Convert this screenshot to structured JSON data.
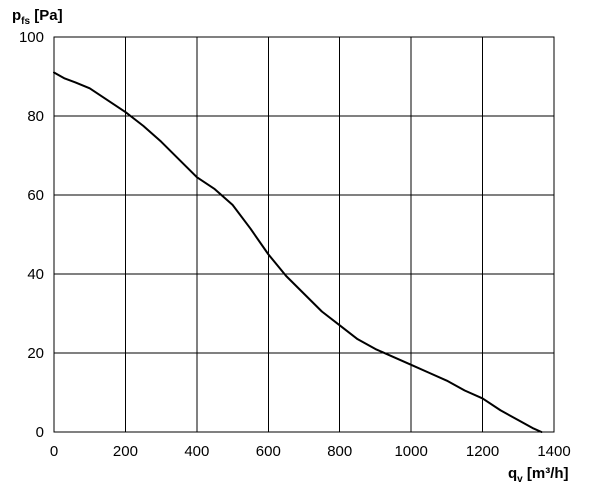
{
  "chart_data": {
    "type": "line",
    "ylabel": {
      "main": "p",
      "sub": "fs",
      "unit": " [Pa]"
    },
    "xlabel": {
      "main": "q",
      "sub": "v",
      "unit": " [m³/h]"
    },
    "xlim": [
      0,
      1400
    ],
    "ylim": [
      0,
      100
    ],
    "grid": true,
    "x_ticks": [
      "0",
      "200",
      "400",
      "600",
      "800",
      "1000",
      "1200",
      "1400"
    ],
    "x_tick_values": [
      0,
      200,
      400,
      600,
      800,
      1000,
      1200,
      1400
    ],
    "y_ticks": [
      "0",
      "20",
      "40",
      "60",
      "80",
      "100"
    ],
    "y_tick_values": [
      0,
      20,
      40,
      60,
      80,
      100
    ],
    "series": [
      {
        "color": "#000000",
        "x": [
          0,
          30,
          60,
          100,
          150,
          200,
          250,
          300,
          350,
          400,
          450,
          500,
          550,
          600,
          650,
          700,
          750,
          800,
          850,
          900,
          950,
          1000,
          1050,
          1100,
          1150,
          1200,
          1250,
          1300,
          1340,
          1365
        ],
        "y": [
          91,
          89.5,
          88.5,
          87,
          84,
          81,
          77.5,
          73.5,
          69,
          64.5,
          61.5,
          57.5,
          51.5,
          45,
          39.5,
          35,
          30.5,
          27,
          23.5,
          21,
          19,
          17,
          15,
          13,
          10.5,
          8.5,
          5.5,
          3,
          1,
          0
        ]
      }
    ]
  }
}
